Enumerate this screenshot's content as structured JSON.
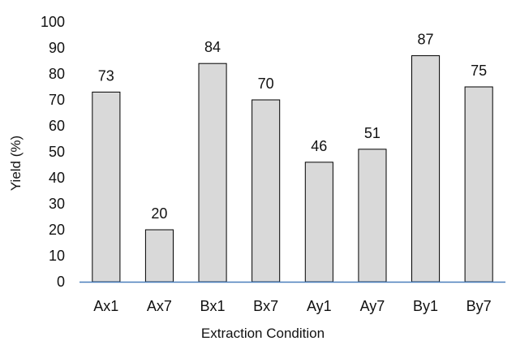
{
  "chart_data": {
    "type": "bar",
    "categories": [
      "Ax1",
      "Ax7",
      "Bx1",
      "Bx7",
      "Ay1",
      "Ay7",
      "By1",
      "By7"
    ],
    "values": [
      73,
      20,
      84,
      70,
      46,
      51,
      87,
      75
    ],
    "data_labels": [
      "73",
      "20",
      "84",
      "70",
      "46",
      "51",
      "87",
      "75"
    ],
    "xlabel": "Extraction Condition",
    "ylabel": "Yield (%)",
    "ylim": [
      0,
      100
    ],
    "yticks": [
      0,
      10,
      20,
      30,
      40,
      50,
      60,
      70,
      80,
      90,
      100
    ],
    "grid": false,
    "bar_color": "#d9d9d9",
    "bar_edge_color": "#000000",
    "axis_color": "#4a7ebb"
  }
}
